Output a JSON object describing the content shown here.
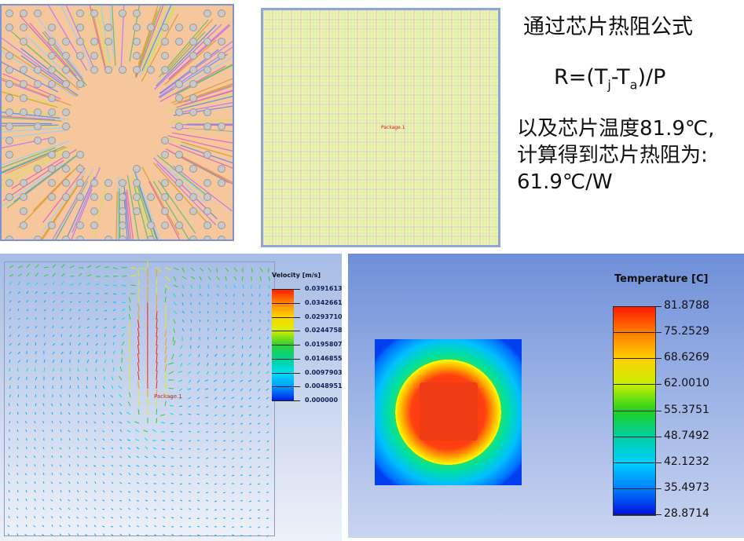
{
  "text_panel": {
    "line1": "通过芯片热阻公式",
    "formula": {
      "lhs": "R=(T",
      "sub_j": "j",
      "mid": "-T",
      "sub_a": "a",
      "rhs": ")/P"
    },
    "line3": "以及芯片温度81.9℃,",
    "line4": "计算得到芯片热阻为:",
    "line5": "61.9℃/W"
  },
  "pcb_label": "Package.1",
  "velocity_plot": {
    "title": "Velocity [m/s]",
    "legend": [
      "0.0391613",
      "0.0342661",
      "0.0293710",
      "0.0244758",
      "0.0195807",
      "0.0146855",
      "0.00979033",
      "0.00489516",
      "0.000000"
    ],
    "label": "Package.1"
  },
  "temperature_plot": {
    "title": "Temperature [C]",
    "legend": [
      "81.8788",
      "75.2529",
      "68.6269",
      "62.0010",
      "55.3751",
      "48.7492",
      "42.1232",
      "35.4973",
      "28.8714"
    ]
  },
  "colors": {
    "hot": "#ff1a00",
    "cold": "#0010e0",
    "pcb_bg": "#f6c79d"
  }
}
